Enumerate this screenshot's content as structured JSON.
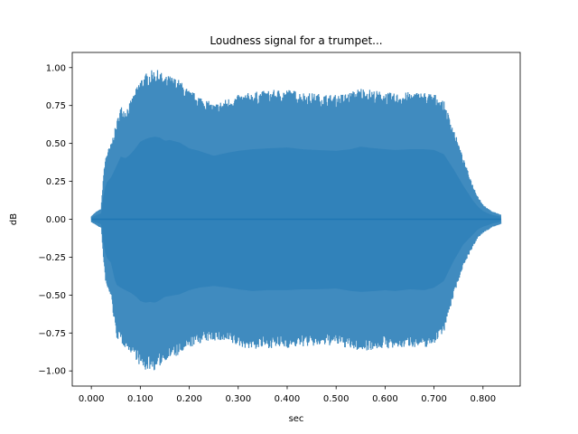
{
  "chart_data": {
    "type": "line",
    "title": "Loudness signal for a trumpet...",
    "xlabel": "sec",
    "ylabel": "dB",
    "xlim": [
      -0.039,
      0.876
    ],
    "ylim": [
      -1.1,
      1.1
    ],
    "x_ticks": [
      0.0,
      0.1,
      0.2,
      0.3,
      0.4,
      0.5,
      0.6,
      0.7,
      0.8
    ],
    "x_tick_labels": [
      "0.000",
      "0.100",
      "0.200",
      "0.300",
      "0.400",
      "0.500",
      "0.600",
      "0.700",
      "0.800"
    ],
    "y_ticks": [
      -1.0,
      -0.75,
      -0.5,
      -0.25,
      0.0,
      0.25,
      0.5,
      0.75,
      1.0
    ],
    "y_tick_labels": [
      "−1.00",
      "−0.75",
      "−0.50",
      "−0.25",
      "0.00",
      "0.25",
      "0.50",
      "0.75",
      "1.00"
    ],
    "grid": false,
    "legend": false,
    "series_color": "#1f77b4",
    "series": [
      {
        "envelope_time": [
          0.0,
          0.01,
          0.02,
          0.025,
          0.03,
          0.04,
          0.05,
          0.06,
          0.07,
          0.08,
          0.09,
          0.1,
          0.11,
          0.12,
          0.13,
          0.14,
          0.15,
          0.16,
          0.18,
          0.2,
          0.22,
          0.25,
          0.28,
          0.3,
          0.33,
          0.36,
          0.4,
          0.43,
          0.46,
          0.5,
          0.53,
          0.55,
          0.58,
          0.6,
          0.62,
          0.65,
          0.68,
          0.7,
          0.72,
          0.74,
          0.76,
          0.78,
          0.79,
          0.8,
          0.81,
          0.82,
          0.83,
          0.837
        ],
        "envelope_peak": [
          0.02,
          0.05,
          0.07,
          0.3,
          0.43,
          0.5,
          0.62,
          0.75,
          0.73,
          0.78,
          0.85,
          0.93,
          0.96,
          0.98,
          0.99,
          0.98,
          0.94,
          0.95,
          0.92,
          0.85,
          0.82,
          0.76,
          0.8,
          0.82,
          0.84,
          0.85,
          0.86,
          0.84,
          0.83,
          0.82,
          0.84,
          0.87,
          0.85,
          0.84,
          0.83,
          0.84,
          0.84,
          0.83,
          0.78,
          0.6,
          0.4,
          0.22,
          0.15,
          0.1,
          0.07,
          0.05,
          0.04,
          0.03
        ],
        "envelope_trough": [
          -0.02,
          -0.04,
          -0.06,
          -0.3,
          -0.45,
          -0.52,
          -0.78,
          -0.82,
          -0.85,
          -0.88,
          -0.92,
          -0.98,
          -1.0,
          -0.99,
          -1.0,
          -0.97,
          -0.93,
          -0.92,
          -0.9,
          -0.85,
          -0.82,
          -0.8,
          -0.82,
          -0.84,
          -0.86,
          -0.85,
          -0.85,
          -0.84,
          -0.84,
          -0.83,
          -0.86,
          -0.87,
          -0.86,
          -0.85,
          -0.86,
          -0.84,
          -0.85,
          -0.82,
          -0.74,
          -0.5,
          -0.3,
          -0.18,
          -0.12,
          -0.09,
          -0.07,
          -0.05,
          -0.04,
          -0.03
        ]
      }
    ]
  }
}
